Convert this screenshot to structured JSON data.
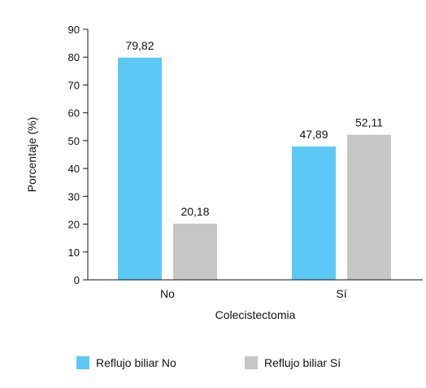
{
  "chart_data": {
    "type": "bar",
    "categories": [
      "No",
      "Sí"
    ],
    "series": [
      {
        "name": "Reflujo biliar No",
        "values": [
          79.82,
          47.89
        ],
        "labels": [
          "79,82",
          "47,89"
        ],
        "color": "#5bc8f5"
      },
      {
        "name": "Reflujo biliar Sí",
        "values": [
          20.18,
          52.11
        ],
        "labels": [
          "20,18",
          "52,11"
        ],
        "color": "#c6c6c6"
      }
    ],
    "title": "",
    "xlabel": "Colecistectomia",
    "ylabel": "Porcentaje (%)",
    "ylim": [
      0,
      90
    ],
    "yticks": [
      0,
      10,
      20,
      30,
      40,
      50,
      60,
      70,
      80,
      90
    ],
    "grid": false,
    "legend_position": "bottom"
  }
}
